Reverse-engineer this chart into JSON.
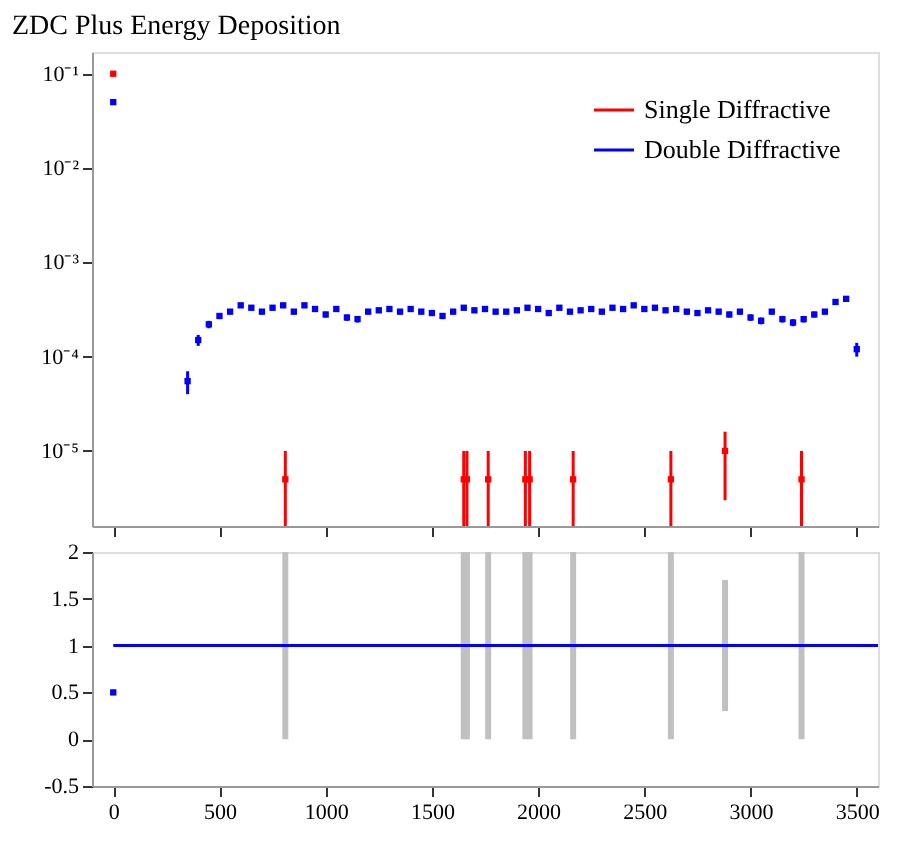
{
  "chart_data": [
    {
      "type": "scatter",
      "title": "ZDC Plus Energy Deposition",
      "log": "y",
      "legend": "top right",
      "marker": "square",
      "tick_labels": "y",
      "xlim": [
        -100,
        3600
      ],
      "xticks": [
        0,
        500,
        1000,
        1500,
        2000,
        2500,
        3000,
        3500
      ],
      "ylim": [
        1.6e-06,
        0.17
      ],
      "yticks": [
        {
          "value": 1e-05,
          "label": "10⁻⁵"
        },
        {
          "value": 0.0001,
          "label": "10⁻⁴"
        },
        {
          "value": 0.001,
          "label": "10⁻³"
        },
        {
          "value": 0.01,
          "label": "10⁻²"
        },
        {
          "value": 0.1,
          "label": "10⁻¹"
        }
      ],
      "series": [
        {
          "name": "Single Diffractive",
          "color": "#ff0000",
          "x": [
            0,
            810,
            1650,
            1665,
            1765,
            1940,
            1960,
            2165,
            2625,
            2880,
            3240
          ],
          "values": [
            0.1,
            5e-06,
            5e-06,
            5e-06,
            5e-06,
            5e-06,
            5e-06,
            5e-06,
            5e-06,
            1e-05,
            5e-06
          ],
          "errors": [
            null,
            [
              1.6e-06,
              1e-05
            ],
            [
              1.6e-06,
              1e-05
            ],
            [
              1.6e-06,
              1e-05
            ],
            [
              1.6e-06,
              1e-05
            ],
            [
              1.6e-06,
              1e-05
            ],
            [
              1.6e-06,
              1e-05
            ],
            [
              1.6e-06,
              1e-05
            ],
            [
              1.6e-06,
              1e-05
            ],
            [
              3e-06,
              1.6e-05
            ],
            [
              1.6e-06,
              1e-05
            ]
          ]
        },
        {
          "name": "Double Diffractive",
          "color": "#0000ff",
          "x": [
            0,
            350,
            400,
            450,
            500,
            550,
            600,
            650,
            700,
            750,
            800,
            850,
            900,
            950,
            1000,
            1050,
            1100,
            1150,
            1200,
            1250,
            1300,
            1350,
            1400,
            1450,
            1500,
            1550,
            1600,
            1650,
            1700,
            1750,
            1800,
            1850,
            1900,
            1950,
            2000,
            2050,
            2100,
            2150,
            2200,
            2250,
            2300,
            2350,
            2400,
            2450,
            2500,
            2550,
            2600,
            2650,
            2700,
            2750,
            2800,
            2850,
            2900,
            2950,
            3000,
            3050,
            3100,
            3150,
            3200,
            3250,
            3300,
            3350,
            3400,
            3450,
            3500
          ],
          "values": [
            0.05,
            5.5e-05,
            0.00015,
            0.00022,
            0.00027,
            0.0003,
            0.00035,
            0.00033,
            0.0003,
            0.00033,
            0.00035,
            0.0003,
            0.00035,
            0.00032,
            0.00028,
            0.00032,
            0.00026,
            0.00025,
            0.0003,
            0.00031,
            0.00032,
            0.0003,
            0.00032,
            0.0003,
            0.00029,
            0.00027,
            0.0003,
            0.00033,
            0.00031,
            0.00032,
            0.0003,
            0.0003,
            0.00031,
            0.00033,
            0.00032,
            0.00029,
            0.00033,
            0.0003,
            0.00031,
            0.00032,
            0.0003,
            0.00033,
            0.00032,
            0.00035,
            0.00032,
            0.00033,
            0.00031,
            0.00032,
            0.0003,
            0.00029,
            0.00031,
            0.0003,
            0.00028,
            0.0003,
            0.00026,
            0.00024,
            0.0003,
            0.00025,
            0.00023,
            0.00025,
            0.00028,
            0.0003,
            0.00038,
            0.00041,
            0.00012
          ],
          "errors": [
            null,
            1.5e-05,
            2e-05,
            2e-05,
            2e-05,
            2e-05,
            2e-05,
            2e-05,
            2e-05,
            2e-05,
            2e-05,
            2e-05,
            2e-05,
            2e-05,
            2e-05,
            2e-05,
            2e-05,
            2e-05,
            2e-05,
            2e-05,
            2e-05,
            2e-05,
            2e-05,
            2e-05,
            2e-05,
            2e-05,
            2e-05,
            2e-05,
            2e-05,
            2e-05,
            2e-05,
            2e-05,
            2e-05,
            2e-05,
            2e-05,
            2e-05,
            2e-05,
            2e-05,
            2e-05,
            2e-05,
            2e-05,
            2e-05,
            2e-05,
            2e-05,
            2e-05,
            2e-05,
            2e-05,
            2e-05,
            2e-05,
            2e-05,
            2e-05,
            2e-05,
            2e-05,
            2e-05,
            2e-05,
            2e-05,
            2e-05,
            2e-05,
            2e-05,
            2e-05,
            2e-05,
            2e-05,
            2e-05,
            2e-05,
            2e-05
          ]
        }
      ]
    },
    {
      "type": "scatter",
      "xlim": [
        -100,
        3600
      ],
      "xticks": [
        0,
        500,
        1000,
        1500,
        2000,
        2500,
        3000,
        3500
      ],
      "ylim": [
        -0.5,
        2
      ],
      "yticks": [
        -0.5,
        0,
        0.5,
        1,
        1.5,
        2
      ],
      "series": [
        {
          "type": "bar",
          "color": "#c0c0c0",
          "x": [
            810,
            1650,
            1665,
            1765,
            1940,
            1960,
            2165,
            2625,
            2880,
            3240
          ],
          "base": [
            0,
            0,
            0,
            0,
            0,
            0,
            0,
            0,
            0.3,
            0
          ],
          "values": [
            2,
            2,
            2,
            2,
            2,
            2,
            2,
            2,
            1.4,
            2
          ]
        },
        {
          "type": "line",
          "color": "#0000ff",
          "marker": "none",
          "x": [
            0,
            3600
          ],
          "values": [
            1,
            1
          ]
        },
        {
          "color": "#0000ff",
          "marker": "square",
          "x": [
            0
          ],
          "values": [
            0.5
          ]
        }
      ]
    }
  ]
}
